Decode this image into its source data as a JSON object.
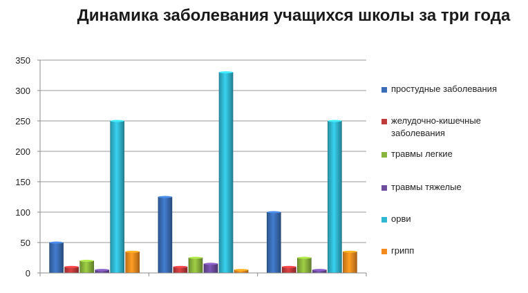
{
  "chart_data": {
    "type": "bar",
    "title": "Динамика заболевания учащихся школы за три года",
    "categories": [
      "",
      "",
      ""
    ],
    "ylim": [
      0,
      350
    ],
    "yticks": [
      0,
      50,
      100,
      150,
      200,
      250,
      300,
      350
    ],
    "grid": true,
    "legend_position": "right",
    "series": [
      {
        "name": "простудные заболевания",
        "color": "#3a6db5",
        "values": [
          50,
          125,
          100
        ]
      },
      {
        "name": "желудочно-кишечные заболевания",
        "color": "#c0393b",
        "values": [
          10,
          10,
          10
        ]
      },
      {
        "name": "травмы легкие",
        "color": "#8ab43c",
        "values": [
          20,
          25,
          25
        ]
      },
      {
        "name": "травмы тяжелые",
        "color": "#6d4c9e",
        "values": [
          5,
          15,
          5
        ]
      },
      {
        "name": "орви",
        "color": "#30b7d1",
        "values": [
          250,
          330,
          250
        ]
      },
      {
        "name": "грипп",
        "color": "#f28a1e",
        "values": [
          35,
          5,
          35
        ]
      }
    ]
  }
}
